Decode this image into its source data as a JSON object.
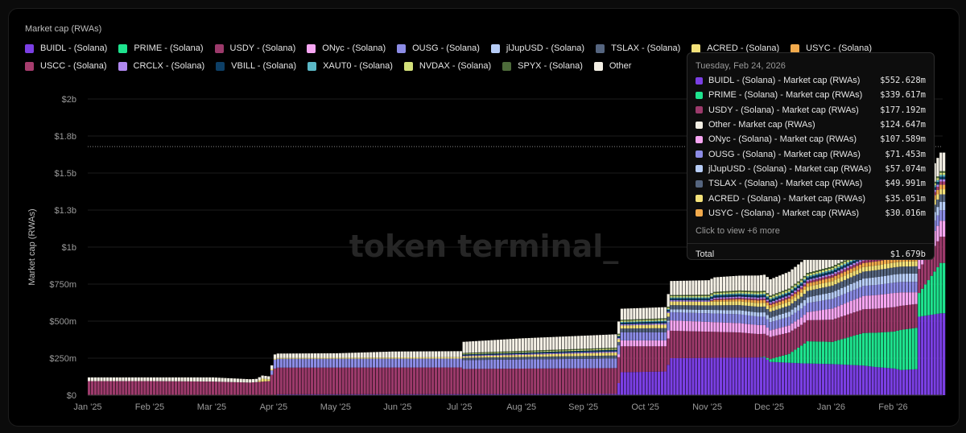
{
  "legend_title": "Market cap (RWAs)",
  "legend": [
    {
      "label": "BUIDL - (Solana)",
      "color": "#7b3fe4"
    },
    {
      "label": "PRIME - (Solana)",
      "color": "#1ee38e"
    },
    {
      "label": "USDY - (Solana)",
      "color": "#9c3a6b"
    },
    {
      "label": "ONyc - (Solana)",
      "color": "#f7a6f2"
    },
    {
      "label": "OUSG - (Solana)",
      "color": "#8c8ce6"
    },
    {
      "label": "jlJupUSD - (Solana)",
      "color": "#b7cdf7"
    },
    {
      "label": "TSLAX - (Solana)",
      "color": "#55657f"
    },
    {
      "label": "ACRED - (Solana)",
      "color": "#f4e27a"
    },
    {
      "label": "USYC - (Solana)",
      "color": "#f2aa4c"
    },
    {
      "label": "USCC - (Solana)",
      "color": "#a63d6e"
    },
    {
      "label": "CRCLX - (Solana)",
      "color": "#b088f0"
    },
    {
      "label": "VBILL - (Solana)",
      "color": "#0d3f66"
    },
    {
      "label": "XAUT0 - (Solana)",
      "color": "#5bb8c6"
    },
    {
      "label": "NVDAX - (Solana)",
      "color": "#d3e07a"
    },
    {
      "label": "SPYX - (Solana)",
      "color": "#4d6b3a"
    },
    {
      "label": "Other",
      "color": "#f3efe4"
    }
  ],
  "watermark": "token terminal_",
  "tooltip": {
    "date": "Tuesday, Feb 24, 2026",
    "rows": [
      {
        "name": "BUIDL - (Solana) - Market cap (RWAs)",
        "value": "$552.628m",
        "color": "#7b3fe4"
      },
      {
        "name": "PRIME - (Solana) - Market cap (RWAs)",
        "value": "$339.617m",
        "color": "#1ee38e"
      },
      {
        "name": "USDY - (Solana) - Market cap (RWAs)",
        "value": "$177.192m",
        "color": "#9c3a6b"
      },
      {
        "name": "Other - Market cap (RWAs)",
        "value": "$124.647m",
        "color": "#f3efe4"
      },
      {
        "name": "ONyc - (Solana) - Market cap (RWAs)",
        "value": "$107.589m",
        "color": "#f7a6f2"
      },
      {
        "name": "OUSG - (Solana) - Market cap (RWAs)",
        "value": "$71.453m",
        "color": "#8c8ce6"
      },
      {
        "name": "jlJupUSD - (Solana) - Market cap (RWAs)",
        "value": "$57.074m",
        "color": "#b7cdf7"
      },
      {
        "name": "TSLAX - (Solana) - Market cap (RWAs)",
        "value": "$49.991m",
        "color": "#55657f"
      },
      {
        "name": "ACRED - (Solana) - Market cap (RWAs)",
        "value": "$35.051m",
        "color": "#f4e27a"
      },
      {
        "name": "USYC - (Solana) - Market cap (RWAs)",
        "value": "$30.016m",
        "color": "#f2aa4c"
      }
    ],
    "more": "Click to view +6 more",
    "total_label": "Total",
    "total_value": "$1.679b"
  },
  "chart_data": {
    "type": "bar",
    "stacked": true,
    "ylabel": "Market cap (RWAs)",
    "y_ticks": [
      "$0",
      "$250m",
      "$500m",
      "$750m",
      "$1b",
      "$1.3b",
      "$1.5b",
      "$1.8b",
      "$2b"
    ],
    "y_tick_values": [
      0,
      250,
      500,
      750,
      1000,
      1250,
      1500,
      1750,
      2000
    ],
    "ylim": [
      0,
      2000
    ],
    "y_unit": "$m",
    "x_ticks": [
      "Jan '25",
      "Feb '25",
      "Mar '25",
      "Apr '25",
      "May '25",
      "Jun '25",
      "Jul '25",
      "Aug '25",
      "Sep '25",
      "Oct '25",
      "Nov '25",
      "Dec '25",
      "Jan '26",
      "Feb '26"
    ],
    "x_tick_months": [
      0,
      1,
      2,
      3,
      4,
      5,
      6,
      7,
      8,
      9,
      10,
      11,
      12,
      13
    ],
    "xlim_months": [
      0,
      13.8
    ],
    "grid": "horizontal",
    "crosshair_value": 1679,
    "series": [
      {
        "name": "BUIDL - (Solana)",
        "color": "#7b3fe4",
        "points": [
          [
            0,
            0
          ],
          [
            3.0,
            0
          ],
          [
            3.05,
            6
          ],
          [
            8.5,
            8
          ],
          [
            8.6,
            155
          ],
          [
            9.3,
            160
          ],
          [
            9.4,
            250
          ],
          [
            10.9,
            255
          ],
          [
            11.0,
            225
          ],
          [
            11.5,
            215
          ],
          [
            12.0,
            210
          ],
          [
            12.5,
            200
          ],
          [
            12.7,
            190
          ],
          [
            13.0,
            180
          ],
          [
            13.1,
            170
          ],
          [
            13.35,
            175
          ],
          [
            13.4,
            530
          ],
          [
            13.75,
            553
          ]
        ]
      },
      {
        "name": "PRIME - (Solana)",
        "color": "#1ee38e",
        "points": [
          [
            0,
            0
          ],
          [
            10.8,
            0
          ],
          [
            10.9,
            5
          ],
          [
            11.3,
            60
          ],
          [
            11.6,
            150
          ],
          [
            12.0,
            150
          ],
          [
            12.5,
            220
          ],
          [
            13.0,
            250
          ],
          [
            13.1,
            270
          ],
          [
            13.35,
            280
          ],
          [
            13.4,
            160
          ],
          [
            13.75,
            340
          ]
        ]
      },
      {
        "name": "USDY - (Solana)",
        "color": "#9c3a6b",
        "points": [
          [
            0,
            95
          ],
          [
            1.0,
            95
          ],
          [
            2.0,
            92
          ],
          [
            2.6,
            85
          ],
          [
            2.9,
            95
          ],
          [
            3.0,
            180
          ],
          [
            6.0,
            180
          ],
          [
            6.05,
            170
          ],
          [
            8.5,
            175
          ],
          [
            8.6,
            175
          ],
          [
            9.3,
            170
          ],
          [
            9.4,
            185
          ],
          [
            10.5,
            170
          ],
          [
            11.0,
            150
          ],
          [
            11.5,
            140
          ],
          [
            12.0,
            150
          ],
          [
            12.5,
            160
          ],
          [
            13.0,
            165
          ],
          [
            13.35,
            160
          ],
          [
            13.75,
            177
          ]
        ]
      },
      {
        "name": "ONyc - (Solana)",
        "color": "#f7a6f2",
        "points": [
          [
            0,
            0
          ],
          [
            8.5,
            0
          ],
          [
            8.6,
            40
          ],
          [
            9.3,
            40
          ],
          [
            9.4,
            70
          ],
          [
            10.9,
            60
          ],
          [
            11.0,
            45
          ],
          [
            11.5,
            50
          ],
          [
            12.0,
            75
          ],
          [
            12.5,
            90
          ],
          [
            13.0,
            95
          ],
          [
            13.35,
            80
          ],
          [
            13.75,
            108
          ]
        ]
      },
      {
        "name": "OUSG - (Solana)",
        "color": "#8c8ce6",
        "points": [
          [
            0,
            0
          ],
          [
            2.9,
            0
          ],
          [
            3.0,
            60
          ],
          [
            4.0,
            60
          ],
          [
            6.0,
            60
          ],
          [
            6.05,
            60
          ],
          [
            8.5,
            65
          ],
          [
            8.6,
            55
          ],
          [
            9.3,
            55
          ],
          [
            9.4,
            55
          ],
          [
            10.5,
            60
          ],
          [
            11.0,
            55
          ],
          [
            12.0,
            65
          ],
          [
            13.0,
            70
          ],
          [
            13.75,
            71
          ]
        ]
      },
      {
        "name": "jlJupUSD - (Solana)",
        "color": "#b7cdf7",
        "points": [
          [
            0,
            0
          ],
          [
            9.3,
            0
          ],
          [
            9.4,
            20
          ],
          [
            11.0,
            30
          ],
          [
            12.0,
            45
          ],
          [
            13.0,
            55
          ],
          [
            13.75,
            57
          ]
        ]
      },
      {
        "name": "TSLAX - (Solana)",
        "color": "#55657f",
        "points": [
          [
            0,
            0
          ],
          [
            6.0,
            0
          ],
          [
            6.05,
            15
          ],
          [
            8.5,
            20
          ],
          [
            8.6,
            25
          ],
          [
            10.0,
            30
          ],
          [
            11.0,
            40
          ],
          [
            12.0,
            45
          ],
          [
            13.0,
            48
          ],
          [
            13.75,
            50
          ]
        ]
      },
      {
        "name": "ACRED - (Solana)",
        "color": "#f4e27a",
        "points": [
          [
            0,
            0
          ],
          [
            2.7,
            0
          ],
          [
            2.8,
            20
          ],
          [
            3.0,
            5
          ],
          [
            6.0,
            10
          ],
          [
            8.5,
            20
          ],
          [
            9.4,
            25
          ],
          [
            11.0,
            25
          ],
          [
            12.0,
            30
          ],
          [
            13.75,
            35
          ]
        ]
      },
      {
        "name": "USYC - (Solana)",
        "color": "#f2aa4c",
        "points": [
          [
            0,
            0
          ],
          [
            10.0,
            0
          ],
          [
            10.1,
            10
          ],
          [
            11.0,
            20
          ],
          [
            12.0,
            25
          ],
          [
            13.75,
            30
          ]
        ]
      },
      {
        "name": "USCC - (Solana)",
        "color": "#a63d6e",
        "points": [
          [
            0,
            0
          ],
          [
            10.0,
            0
          ],
          [
            10.1,
            8
          ],
          [
            11.0,
            10
          ],
          [
            12.0,
            15
          ],
          [
            13.75,
            22
          ]
        ]
      },
      {
        "name": "CRCLX - (Solana)",
        "color": "#b088f0",
        "points": [
          [
            0,
            0
          ],
          [
            6.0,
            0
          ],
          [
            6.05,
            5
          ],
          [
            9.0,
            8
          ],
          [
            11.0,
            10
          ],
          [
            13.75,
            15
          ]
        ]
      },
      {
        "name": "VBILL - (Solana)",
        "color": "#0d3f66",
        "points": [
          [
            0,
            0
          ],
          [
            6.0,
            0
          ],
          [
            6.05,
            8
          ],
          [
            9.0,
            12
          ],
          [
            11.0,
            15
          ],
          [
            13.75,
            18
          ]
        ]
      },
      {
        "name": "XAUT0 - (Solana)",
        "color": "#5bb8c6",
        "points": [
          [
            0,
            0
          ],
          [
            8.5,
            0
          ],
          [
            8.6,
            5
          ],
          [
            11.0,
            8
          ],
          [
            13.75,
            12
          ]
        ]
      },
      {
        "name": "NVDAX - (Solana)",
        "color": "#d3e07a",
        "points": [
          [
            0,
            0
          ],
          [
            6.0,
            0
          ],
          [
            6.05,
            5
          ],
          [
            9.0,
            8
          ],
          [
            11.0,
            12
          ],
          [
            13.75,
            14
          ]
        ]
      },
      {
        "name": "SPYX - (Solana)",
        "color": "#4d6b3a",
        "points": [
          [
            0,
            0
          ],
          [
            6.0,
            0
          ],
          [
            6.05,
            5
          ],
          [
            9.0,
            7
          ],
          [
            11.0,
            9
          ],
          [
            13.75,
            11
          ]
        ]
      },
      {
        "name": "Other",
        "color": "#f3efe4",
        "points": [
          [
            0,
            25
          ],
          [
            1.0,
            25
          ],
          [
            2.0,
            28
          ],
          [
            2.9,
            20
          ],
          [
            3.0,
            30
          ],
          [
            4.0,
            30
          ],
          [
            4.9,
            40
          ],
          [
            6.0,
            40
          ],
          [
            6.05,
            75
          ],
          [
            7.0,
            85
          ],
          [
            8.5,
            90
          ],
          [
            8.6,
            75
          ],
          [
            9.3,
            75
          ],
          [
            9.4,
            95
          ],
          [
            10.5,
            100
          ],
          [
            11.0,
            110
          ],
          [
            12.0,
            120
          ],
          [
            13.0,
            125
          ],
          [
            13.75,
            125
          ]
        ]
      }
    ]
  }
}
